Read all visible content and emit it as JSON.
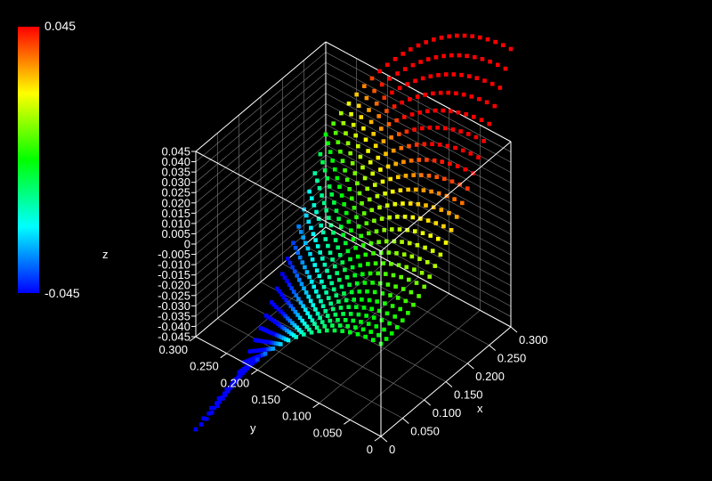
{
  "chart_data": {
    "type": "scatter",
    "mode": "3d-surface-points",
    "xlabel": "x",
    "ylabel": "y",
    "zlabel": "z",
    "xlim": [
      0,
      0.3
    ],
    "ylim": [
      0,
      0.3
    ],
    "zlim": [
      -0.045,
      0.045
    ],
    "x_ticks": [
      "0",
      "0.050",
      "0.100",
      "0.150",
      "0.200",
      "0.250",
      "0.300"
    ],
    "y_ticks": [
      "0",
      "0.050",
      "0.100",
      "0.150",
      "0.200",
      "0.250",
      "0.300"
    ],
    "z_ticks": [
      "0.045",
      "0.040",
      "0.035",
      "0.030",
      "0.025",
      "0.020",
      "0.015",
      "0.010",
      "0.005",
      "0",
      "-0.005",
      "-0.010",
      "-0.015",
      "-0.020",
      "-0.025",
      "-0.030",
      "-0.035",
      "-0.040",
      "-0.045"
    ],
    "z_tick_values": [
      0.045,
      0.04,
      0.035,
      0.03,
      0.025,
      0.02,
      0.015,
      0.01,
      0.005,
      0,
      -0.005,
      -0.01,
      -0.015,
      -0.02,
      -0.025,
      -0.03,
      -0.035,
      -0.04,
      -0.045
    ],
    "colorbar": {
      "max_label": "0.045",
      "min_label": "-0.045",
      "colormap": "rainbow",
      "min": -0.045,
      "max": 0.045
    },
    "surface": {
      "formula": "z = x*x - y*y",
      "samples_per_axis": 25,
      "xrange": [
        0,
        0.3
      ],
      "yrange": [
        0,
        0.3
      ]
    },
    "grid": true,
    "background": "#000000"
  }
}
